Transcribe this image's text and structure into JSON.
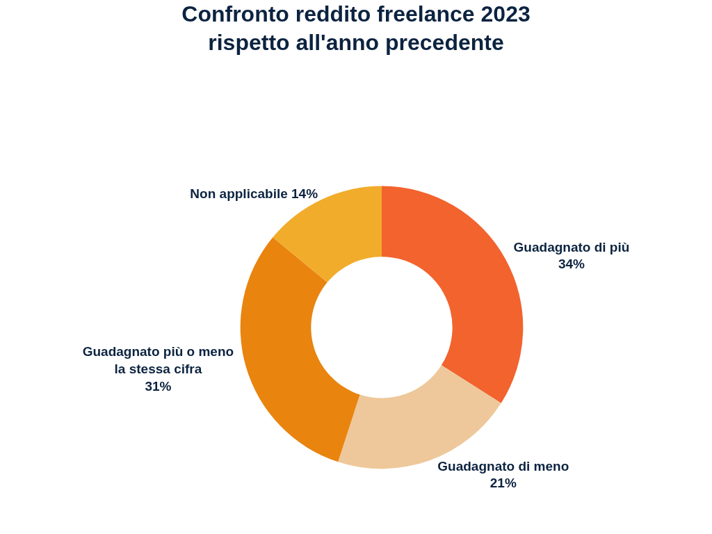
{
  "chart_data": {
    "type": "donut",
    "title": "Confronto reddito freelance 2023\nrispetto all'anno precedente",
    "categories": [
      "Guadagnato di più",
      "Guadagnato di meno",
      "Guadagnato più o meno la stessa cifra",
      "Non applicabile"
    ],
    "values": [
      34,
      21,
      31,
      14
    ],
    "value_labels": [
      "34%",
      "21%",
      "31%",
      "14%"
    ],
    "colors": [
      "#f2632e",
      "#eec89a",
      "#e9840f",
      "#f1ac2b"
    ],
    "legend": false
  }
}
